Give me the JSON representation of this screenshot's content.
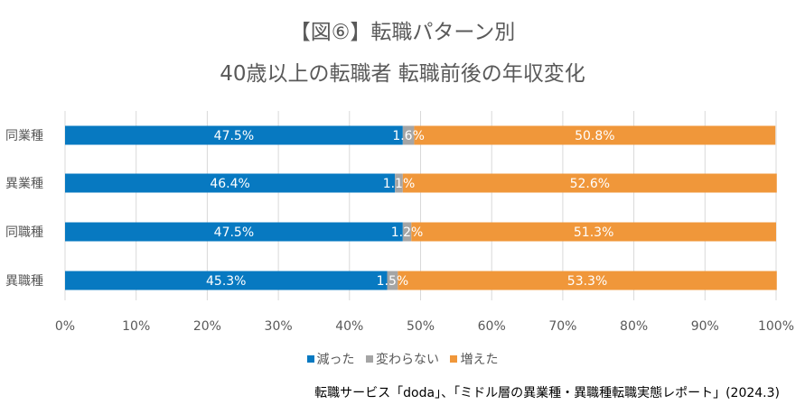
{
  "title_line1": "【図⑥】転職パターン別",
  "title_line2": "40歳以上の転職者 転職前後の年収変化",
  "source": "転職サービス「doda」、「ミドル層の異業種・異職種転職実態レポート」(2024.3)",
  "chart_data": {
    "type": "bar",
    "orientation": "horizontal",
    "stacked": "100%",
    "categories": [
      "同業種",
      "異業種",
      "同職種",
      "異職種"
    ],
    "series": [
      {
        "name": "減った",
        "color": "#0779C1",
        "values": [
          47.5,
          46.4,
          47.5,
          45.3
        ],
        "labels": [
          "47.5%",
          "46.4%",
          "47.5%",
          "45.3%"
        ]
      },
      {
        "name": "変わらない",
        "color": "#A5A5A5",
        "values": [
          1.6,
          1.1,
          1.2,
          1.5
        ],
        "labels": [
          "1.6%",
          "1.1%",
          "1.2%",
          "1.5%"
        ]
      },
      {
        "name": "増えた",
        "color": "#F0973A",
        "values": [
          50.8,
          52.6,
          51.3,
          53.3
        ],
        "labels": [
          "50.8%",
          "52.6%",
          "51.3%",
          "53.3%"
        ]
      }
    ],
    "xticks": [
      "0%",
      "10%",
      "20%",
      "30%",
      "40%",
      "50%",
      "60%",
      "70%",
      "80%",
      "90%",
      "100%"
    ],
    "xlim": [
      0,
      100
    ],
    "grid": true,
    "legend_position": "bottom"
  }
}
